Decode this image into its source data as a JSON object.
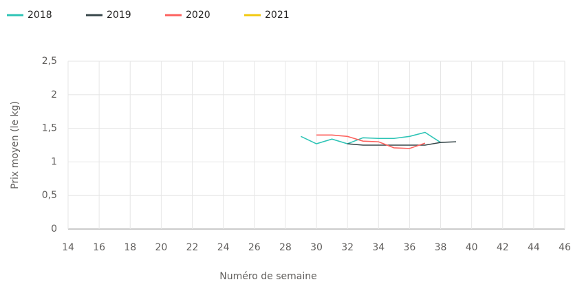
{
  "chart_data": {
    "type": "line",
    "x": [
      29,
      30,
      31,
      32,
      33,
      34,
      35,
      36,
      37,
      38,
      39
    ],
    "series": [
      {
        "name": "2018",
        "color": "#2ec4b6",
        "values": [
          1.38,
          1.27,
          1.34,
          1.27,
          1.36,
          1.35,
          1.35,
          1.38,
          1.44,
          1.29,
          null
        ]
      },
      {
        "name": "2019",
        "color": "#374649",
        "values": [
          null,
          null,
          null,
          1.27,
          1.25,
          1.25,
          1.25,
          1.25,
          1.25,
          1.29,
          1.3
        ]
      },
      {
        "name": "2020",
        "color": "#fd625e",
        "values": [
          null,
          1.4,
          1.4,
          1.38,
          1.31,
          1.3,
          1.21,
          1.2,
          1.28,
          null,
          null
        ]
      },
      {
        "name": "2021",
        "color": "#f2c80f",
        "values": [
          null,
          null,
          null,
          null,
          null,
          null,
          null,
          null,
          null,
          null,
          null
        ]
      }
    ],
    "xlabel": "Numéro de semaine",
    "ylabel": "Prix moyen  (le kg)",
    "xlim": [
      14,
      46
    ],
    "xticks": [
      14,
      16,
      18,
      20,
      22,
      24,
      26,
      28,
      30,
      32,
      34,
      36,
      38,
      40,
      42,
      44,
      46
    ],
    "ylim": [
      0,
      2.5
    ],
    "yticks": [
      0,
      {
        "value": 0.5,
        "label": "0,5"
      },
      1,
      {
        "value": 1.5,
        "label": "1,5"
      },
      2,
      {
        "value": 2.5,
        "label": "2,5"
      }
    ],
    "grid": true,
    "legend": "top-left"
  }
}
